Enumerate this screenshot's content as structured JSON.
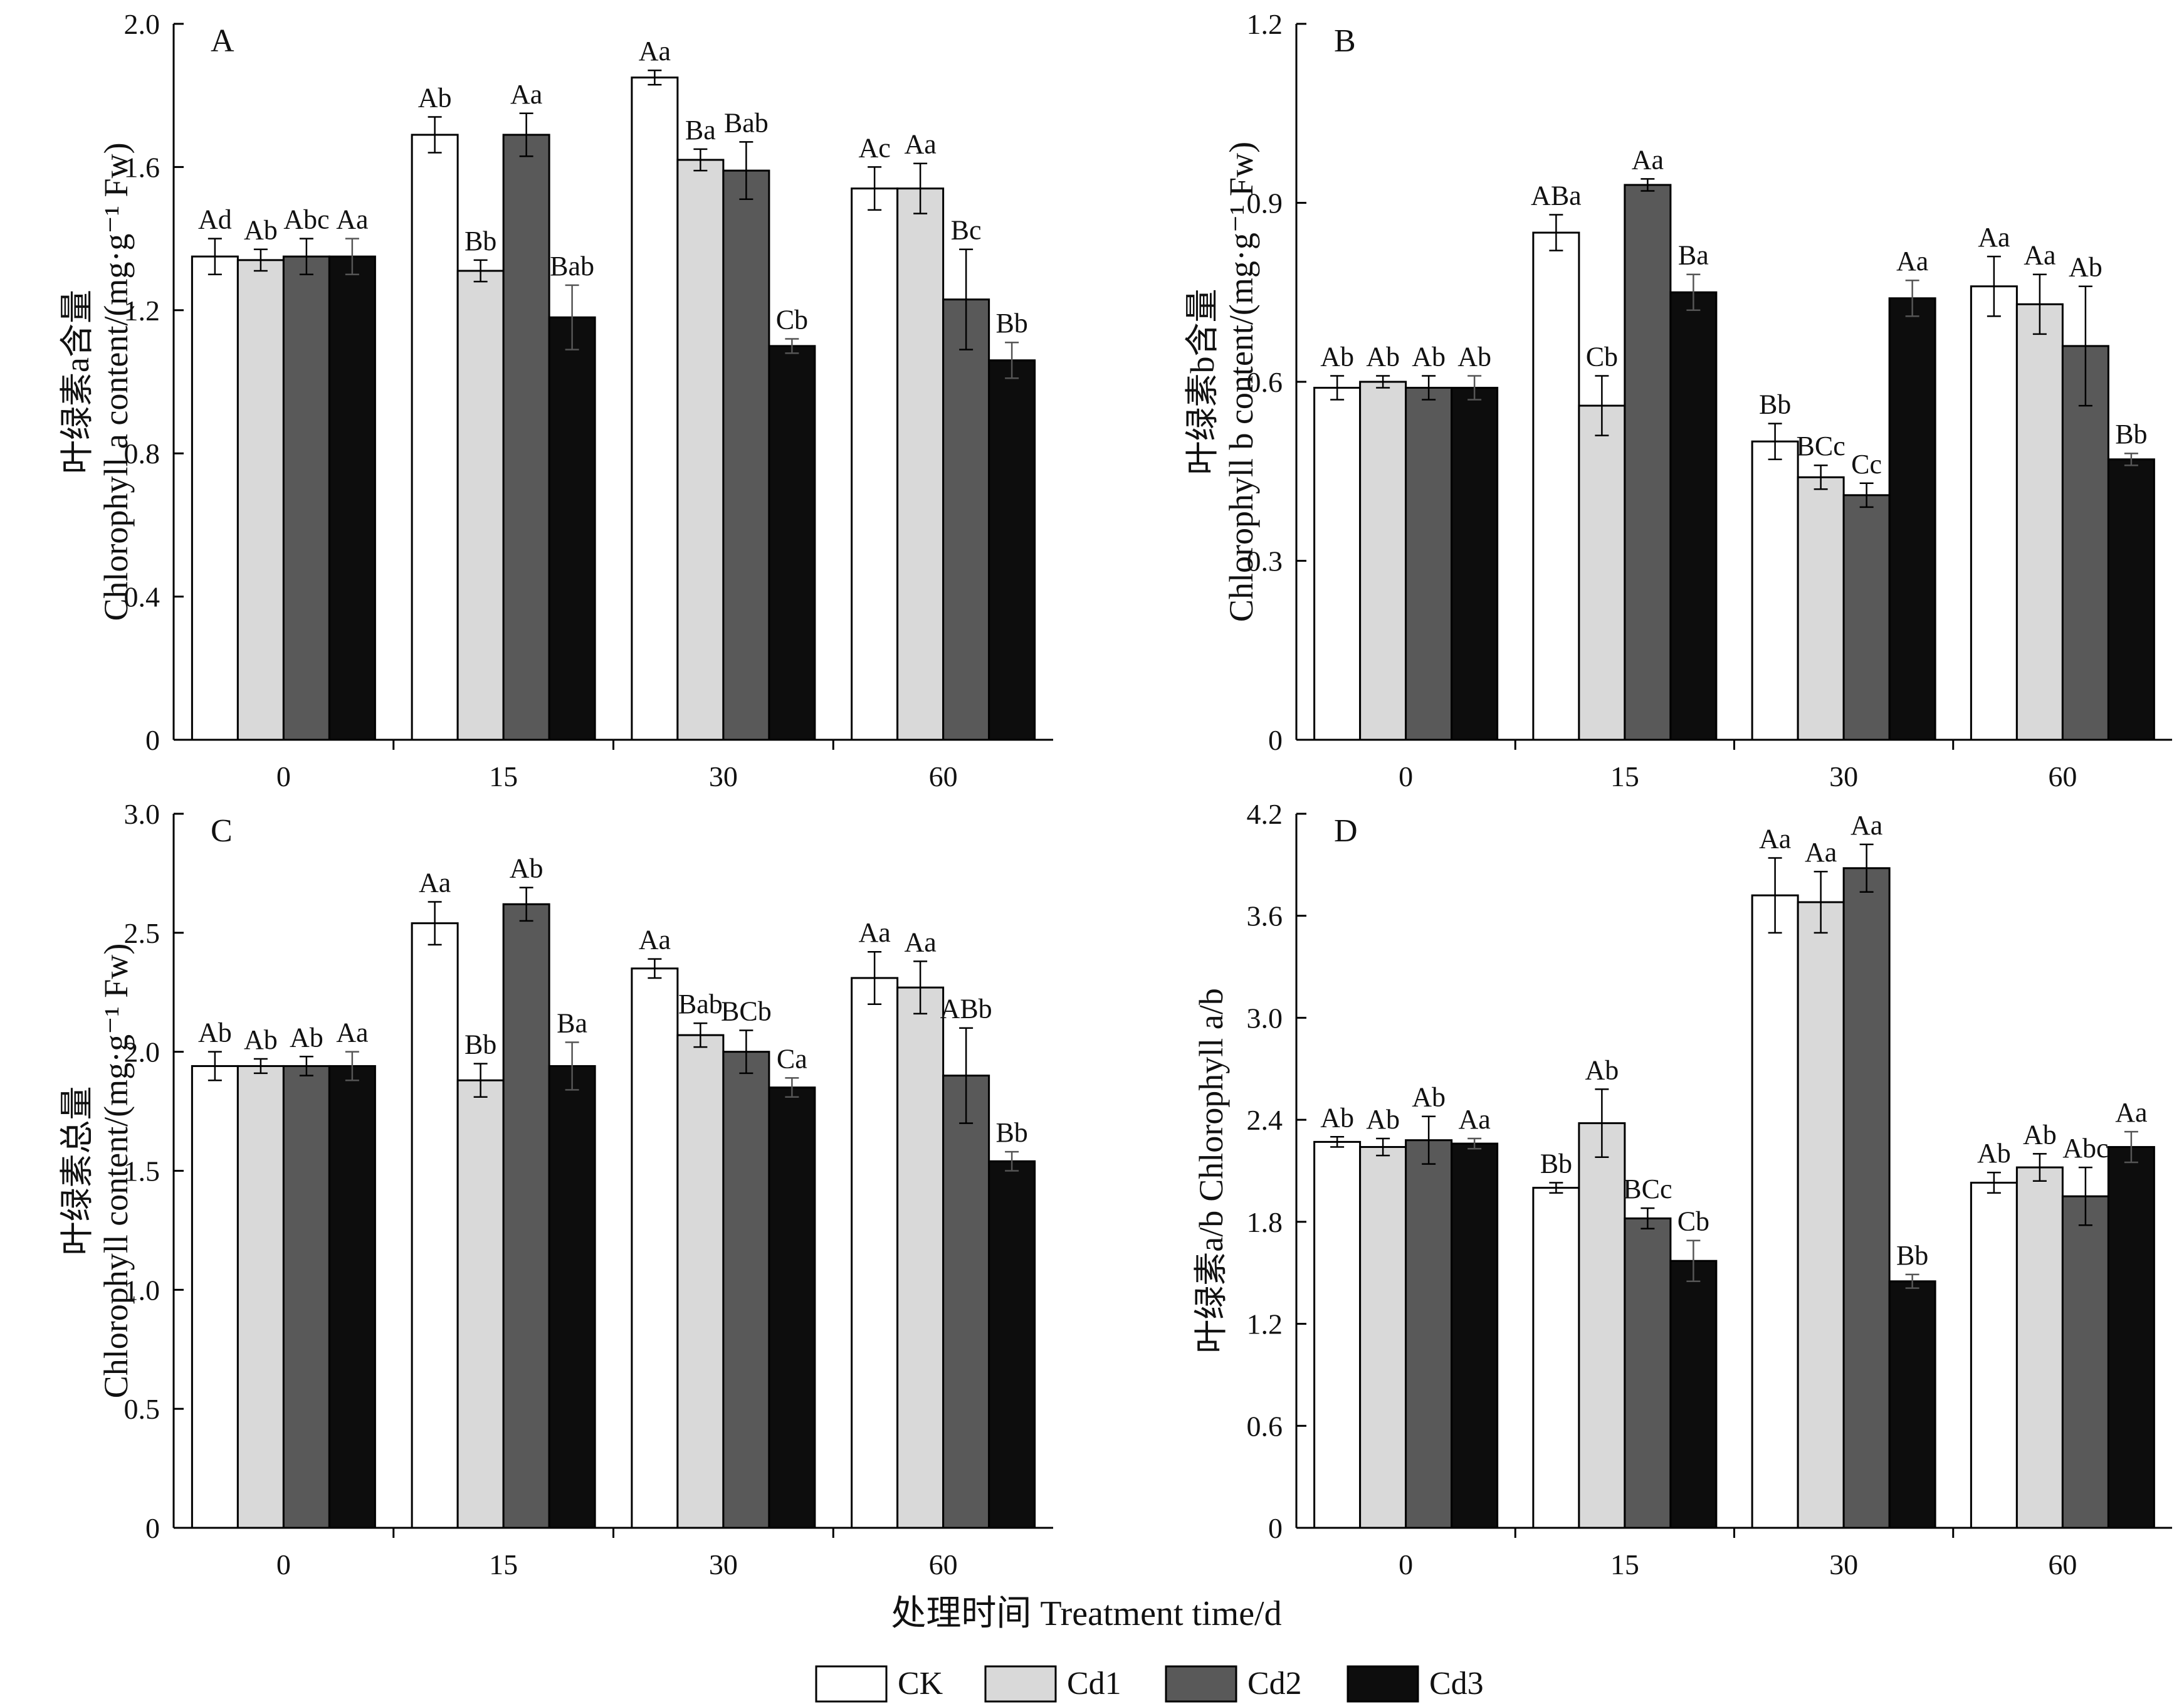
{
  "figure": {
    "x_title": "处理时间 Treatment time/d",
    "legend": [
      {
        "label": "CK",
        "color": "#ffffff"
      },
      {
        "label": "Cd1",
        "color": "#d9d9d9"
      },
      {
        "label": "Cd2",
        "color": "#595959"
      },
      {
        "label": "Cd3",
        "color": "#0d0d0d"
      }
    ]
  },
  "chart_data": [
    {
      "type": "bar",
      "panel": "A",
      "ylabel_cn": "叶绿素a含量",
      "ylabel_en": "Chlorophyll a content/(mg·g⁻¹ Fw)",
      "ylim": [
        0,
        2.0
      ],
      "yticks": [
        "0",
        "0.4",
        "0.8",
        "1.2",
        "1.6",
        "2.0"
      ],
      "categories": [
        "0",
        "15",
        "30",
        "60"
      ],
      "series": [
        {
          "name": "CK",
          "values": [
            1.35,
            1.69,
            1.85,
            1.54
          ],
          "errors": [
            0.05,
            0.05,
            0.02,
            0.06
          ],
          "labels": [
            "Ad",
            "Ab",
            "Aa",
            "Ac"
          ]
        },
        {
          "name": "Cd1",
          "values": [
            1.34,
            1.31,
            1.62,
            1.54
          ],
          "errors": [
            0.03,
            0.03,
            0.03,
            0.07
          ],
          "labels": [
            "Ab",
            "Bb",
            "Ba",
            "Aa"
          ]
        },
        {
          "name": "Cd2",
          "values": [
            1.35,
            1.69,
            1.59,
            1.23
          ],
          "errors": [
            0.05,
            0.06,
            0.08,
            0.14
          ],
          "labels": [
            "Abc",
            "Aa",
            "Bab",
            "Bc"
          ]
        },
        {
          "name": "Cd3",
          "values": [
            1.35,
            1.18,
            1.1,
            1.06
          ],
          "errors": [
            0.05,
            0.09,
            0.02,
            0.05
          ],
          "labels": [
            "Aa",
            "Bab",
            "Cb",
            "Bb"
          ]
        }
      ]
    },
    {
      "type": "bar",
      "panel": "B",
      "ylabel_cn": "叶绿素b含量",
      "ylabel_en": "Chlorophyll b content/(mg·g⁻¹ Fw)",
      "ylim": [
        0,
        1.2
      ],
      "yticks": [
        "0",
        "0.3",
        "0.6",
        "0.9",
        "1.2"
      ],
      "categories": [
        "0",
        "15",
        "30",
        "60"
      ],
      "series": [
        {
          "name": "CK",
          "values": [
            0.59,
            0.85,
            0.5,
            0.76
          ],
          "errors": [
            0.02,
            0.03,
            0.03,
            0.05
          ],
          "labels": [
            "Ab",
            "ABa",
            "Bb",
            "Aa"
          ]
        },
        {
          "name": "Cd1",
          "values": [
            0.6,
            0.56,
            0.44,
            0.73
          ],
          "errors": [
            0.01,
            0.05,
            0.02,
            0.05
          ],
          "labels": [
            "Ab",
            "Cb",
            "BCc",
            "Aa"
          ]
        },
        {
          "name": "Cd2",
          "values": [
            0.59,
            0.93,
            0.41,
            0.66
          ],
          "errors": [
            0.02,
            0.01,
            0.02,
            0.1
          ],
          "labels": [
            "Ab",
            "Aa",
            "Cc",
            "Ab"
          ]
        },
        {
          "name": "Cd3",
          "values": [
            0.59,
            0.75,
            0.74,
            0.47
          ],
          "errors": [
            0.02,
            0.03,
            0.03,
            0.01
          ],
          "labels": [
            "Ab",
            "Ba",
            "Aa",
            "Bb"
          ]
        }
      ]
    },
    {
      "type": "bar",
      "panel": "C",
      "ylabel_cn": "叶绿素总量",
      "ylabel_en": "Chlorophyll content/(mg·g⁻¹ Fw)",
      "ylim": [
        0,
        3.0
      ],
      "yticks": [
        "0",
        "0.5",
        "1.0",
        "1.5",
        "2.0",
        "2.5",
        "3.0"
      ],
      "categories": [
        "0",
        "15",
        "30",
        "60"
      ],
      "series": [
        {
          "name": "CK",
          "values": [
            1.94,
            2.54,
            2.35,
            2.31
          ],
          "errors": [
            0.06,
            0.09,
            0.04,
            0.11
          ],
          "labels": [
            "Ab",
            "Aa",
            "Aa",
            "Aa"
          ]
        },
        {
          "name": "Cd1",
          "values": [
            1.94,
            1.88,
            2.07,
            2.27
          ],
          "errors": [
            0.03,
            0.07,
            0.05,
            0.11
          ],
          "labels": [
            "Ab",
            "Bb",
            "Bab",
            "Aa"
          ]
        },
        {
          "name": "Cd2",
          "values": [
            1.94,
            2.62,
            2.0,
            1.9
          ],
          "errors": [
            0.04,
            0.07,
            0.09,
            0.2
          ],
          "labels": [
            "Ab",
            "Ab",
            "BCb",
            "ABb"
          ]
        },
        {
          "name": "Cd3",
          "values": [
            1.94,
            1.94,
            1.85,
            1.54
          ],
          "errors": [
            0.06,
            0.1,
            0.04,
            0.04
          ],
          "labels": [
            "Aa",
            "Ba",
            "Ca",
            "Bb"
          ]
        }
      ]
    },
    {
      "type": "bar",
      "panel": "D",
      "ylabel_cn": "叶绿素a/b",
      "ylabel_en": "Chlorophyll a/b",
      "ylim": [
        0,
        4.2
      ],
      "yticks": [
        "0",
        "0.6",
        "1.2",
        "1.8",
        "2.4",
        "3.0",
        "3.6",
        "4.2"
      ],
      "categories": [
        "0",
        "15",
        "30",
        "60"
      ],
      "series": [
        {
          "name": "CK",
          "values": [
            2.27,
            2.0,
            3.72,
            2.03
          ],
          "errors": [
            0.03,
            0.03,
            0.22,
            0.06
          ],
          "labels": [
            "Ab",
            "Bb",
            "Aa",
            "Ab"
          ]
        },
        {
          "name": "Cd1",
          "values": [
            2.24,
            2.38,
            3.68,
            2.12
          ],
          "errors": [
            0.05,
            0.2,
            0.18,
            0.08
          ],
          "labels": [
            "Ab",
            "Ab",
            "Aa",
            "Ab"
          ]
        },
        {
          "name": "Cd2",
          "values": [
            2.28,
            1.82,
            3.88,
            1.95
          ],
          "errors": [
            0.14,
            0.06,
            0.14,
            0.17
          ],
          "labels": [
            "Ab",
            "BCc",
            "Aa",
            "Abc"
          ]
        },
        {
          "name": "Cd3",
          "values": [
            2.26,
            1.57,
            1.45,
            2.24
          ],
          "errors": [
            0.03,
            0.12,
            0.04,
            0.09
          ],
          "labels": [
            "Aa",
            "Cb",
            "Bb",
            "Aa"
          ]
        }
      ]
    }
  ]
}
